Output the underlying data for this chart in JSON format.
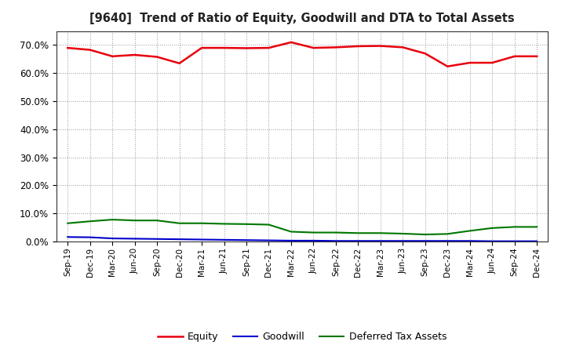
{
  "title": "[9640]  Trend of Ratio of Equity, Goodwill and DTA to Total Assets",
  "x_labels": [
    "Sep-19",
    "Dec-19",
    "Mar-20",
    "Jun-20",
    "Sep-20",
    "Dec-20",
    "Mar-21",
    "Jun-21",
    "Sep-21",
    "Dec-21",
    "Mar-22",
    "Jun-22",
    "Sep-22",
    "Dec-22",
    "Mar-23",
    "Jun-23",
    "Sep-23",
    "Dec-23",
    "Mar-24",
    "Jun-24",
    "Sep-24",
    "Dec-24"
  ],
  "equity": [
    0.69,
    0.683,
    0.66,
    0.665,
    0.658,
    0.635,
    0.69,
    0.69,
    0.689,
    0.69,
    0.71,
    0.69,
    0.692,
    0.696,
    0.697,
    0.692,
    0.67,
    0.624,
    0.637,
    0.637,
    0.66,
    0.66
  ],
  "goodwill": [
    0.016,
    0.015,
    0.011,
    0.01,
    0.009,
    0.008,
    0.007,
    0.006,
    0.005,
    0.004,
    0.003,
    0.003,
    0.002,
    0.002,
    0.002,
    0.002,
    0.002,
    0.002,
    0.002,
    0.001,
    0.001,
    0.001
  ],
  "dta": [
    0.065,
    0.072,
    0.078,
    0.075,
    0.075,
    0.065,
    0.065,
    0.063,
    0.062,
    0.06,
    0.035,
    0.032,
    0.032,
    0.03,
    0.03,
    0.028,
    0.025,
    0.027,
    0.038,
    0.048,
    0.052,
    0.052
  ],
  "equity_color": "#e8000d",
  "goodwill_color": "#0000cc",
  "dta_color": "#007700",
  "ylim": [
    0.0,
    0.75
  ],
  "yticks": [
    0.0,
    0.1,
    0.2,
    0.3,
    0.4,
    0.5,
    0.6,
    0.7
  ],
  "background_color": "#ffffff",
  "plot_bg_color": "#ffffff",
  "grid_color": "#999999",
  "legend_labels": [
    "Equity",
    "Goodwill",
    "Deferred Tax Assets"
  ]
}
